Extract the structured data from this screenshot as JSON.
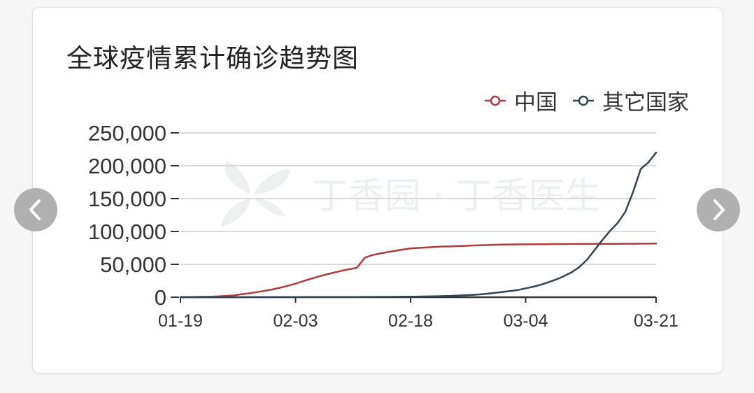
{
  "chart_data": {
    "type": "line",
    "title": "全球疫情累计确诊趋势图",
    "x": [
      "01-19",
      "01-20",
      "01-21",
      "01-22",
      "01-23",
      "01-24",
      "01-25",
      "01-26",
      "01-27",
      "01-28",
      "01-29",
      "01-30",
      "01-31",
      "02-01",
      "02-02",
      "02-03",
      "02-04",
      "02-05",
      "02-06",
      "02-07",
      "02-08",
      "02-09",
      "02-10",
      "02-11",
      "02-12",
      "02-13",
      "02-14",
      "02-15",
      "02-16",
      "02-17",
      "02-18",
      "02-19",
      "02-20",
      "02-21",
      "02-22",
      "02-23",
      "02-24",
      "02-25",
      "02-26",
      "02-27",
      "02-28",
      "02-29",
      "03-01",
      "03-02",
      "03-03",
      "03-04",
      "03-05",
      "03-06",
      "03-07",
      "03-08",
      "03-09",
      "03-10",
      "03-11",
      "03-12",
      "03-13",
      "03-14",
      "03-15",
      "03-16",
      "03-17",
      "03-18",
      "03-19",
      "03-20",
      "03-21"
    ],
    "x_tick_labels": [
      "01-19",
      "02-03",
      "02-18",
      "03-04",
      "03-21"
    ],
    "y_tick_labels": [
      "0",
      "50,000",
      "100,000",
      "150,000",
      "200,000",
      "250,000"
    ],
    "ylim": [
      0,
      250000
    ],
    "grid": true,
    "legend_position": "top-right",
    "series": [
      {
        "name": "中国",
        "color": "#b13a3a",
        "values": [
          200,
          300,
          450,
          600,
          850,
          1300,
          2000,
          2800,
          4600,
          6000,
          7800,
          9800,
          11800,
          14500,
          17500,
          20500,
          24500,
          28000,
          31500,
          34600,
          37300,
          40200,
          42700,
          44700,
          59900,
          64000,
          66500,
          68600,
          70600,
          72500,
          74300,
          75000,
          75600,
          76300,
          77000,
          77200,
          77700,
          78100,
          78600,
          78900,
          79300,
          79800,
          80000,
          80200,
          80300,
          80400,
          80500,
          80600,
          80700,
          80800,
          80900,
          80950,
          81000,
          81000,
          81050,
          81100,
          81150,
          81200,
          81250,
          81300,
          81400,
          81500,
          81600
        ]
      },
      {
        "name": "其它国家",
        "color": "#2f4554",
        "values": [
          0,
          0,
          5,
          10,
          15,
          20,
          30,
          40,
          50,
          60,
          70,
          80,
          100,
          120,
          140,
          160,
          180,
          190,
          200,
          220,
          250,
          280,
          310,
          350,
          400,
          450,
          500,
          550,
          650,
          800,
          900,
          1000,
          1200,
          1400,
          1600,
          1900,
          2300,
          2900,
          3500,
          4300,
          5300,
          6600,
          8000,
          9500,
          11000,
          13500,
          16000,
          19000,
          23000,
          27000,
          32000,
          38000,
          46000,
          57000,
          72000,
          87000,
          101000,
          113000,
          130000,
          160000,
          195000,
          205000,
          220000
        ]
      }
    ]
  },
  "watermark": {
    "text": "丁香园 · 丁香医生"
  },
  "navigation": {
    "prev_icon": "chevron-left-icon",
    "next_icon": "chevron-right-icon"
  }
}
